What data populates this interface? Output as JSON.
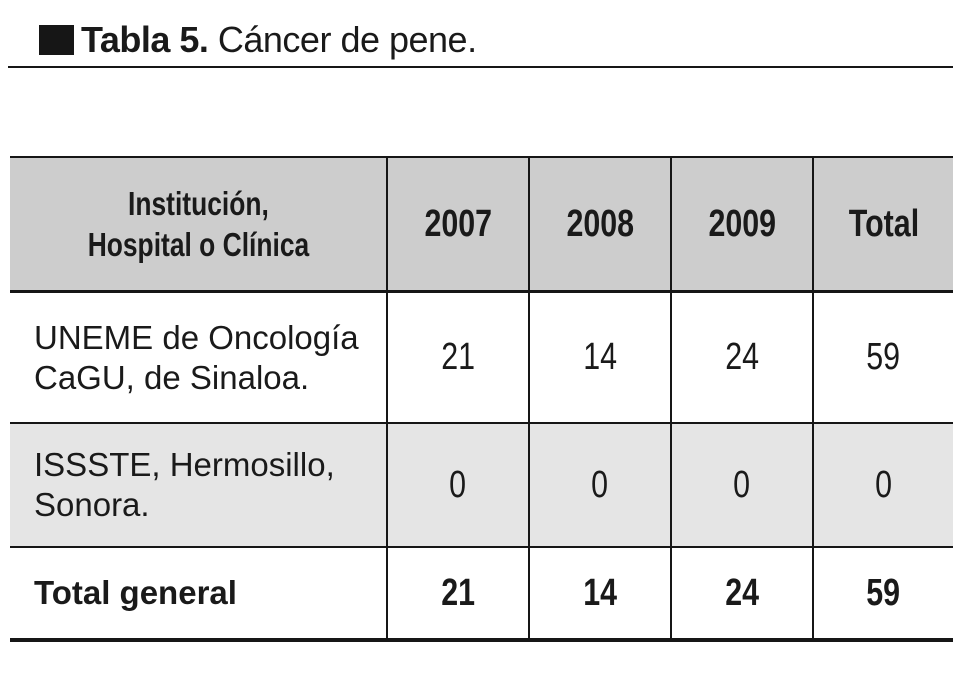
{
  "title": {
    "marker_icon": "black-square-icon",
    "label": "Tabla 5.",
    "caption": " Cáncer de pene."
  },
  "colors": {
    "header_bg": "#cdcdcd",
    "alt_row_bg": "#e5e5e5",
    "border": "#161616",
    "text": "#1a1a1a"
  },
  "table": {
    "columns": [
      {
        "label": "Institución,\nHospital o Clínica"
      },
      {
        "label": "2007"
      },
      {
        "label": "2008"
      },
      {
        "label": "2009"
      },
      {
        "label": "Total"
      }
    ],
    "rows": [
      {
        "institution": "UNEME de Oncología\nCaGU, de Sinaloa.",
        "y2007": "21",
        "y2008": "14",
        "y2009": "24",
        "total": "59"
      },
      {
        "institution": "ISSSTE, Hermosillo,\nSonora.",
        "y2007": "0",
        "y2008": "0",
        "y2009": "0",
        "total": "0"
      },
      {
        "institution": "Total general",
        "y2007": "21",
        "y2008": "14",
        "y2009": "24",
        "total": "59"
      }
    ]
  }
}
